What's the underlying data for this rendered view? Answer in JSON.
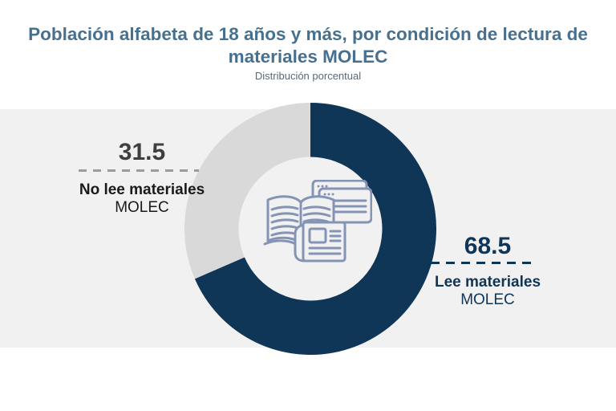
{
  "header": {
    "title_line1": "Población alfabeta de 18 años y más, por condición de lectura de",
    "title_line2": "materiales MOLEC",
    "subtitle": "Distribución porcentual"
  },
  "chart_data": {
    "type": "pie",
    "variant": "donut",
    "title": "Población alfabeta de 18 años y más, por condición de lectura de materiales MOLEC",
    "subtitle": "Distribución porcentual",
    "unit": "percent",
    "categories": [
      "Lee materiales MOLEC",
      "No lee materiales MOLEC"
    ],
    "values": [
      68.5,
      31.5
    ],
    "colors": [
      "#0F3557",
      "#D9D9D9"
    ],
    "start_angle_deg": 0,
    "direction": "clockwise",
    "inner_radius_ratio": 0.57,
    "center_icon": "reading-materials-icon",
    "legend_position": "callout-labels"
  },
  "callouts": {
    "left": {
      "value": "31.5",
      "label_line1": "No lee materiales",
      "label_line2": "MOLEC"
    },
    "right": {
      "value": "68.5",
      "label_line1": "Lee materiales",
      "label_line2": "MOLEC"
    }
  },
  "colors": {
    "navy": "#0F3557",
    "slice_gray": "#D9D9D9",
    "band_bg": "#F1F1F2",
    "title": "#47708F",
    "subtitle": "#5A6976",
    "left_value": "#3F3F3F",
    "left_text": "#1A1A1A",
    "left_dash": "#9B9B9B",
    "icon_stroke": "#8494B4",
    "page_bg": "#FFFFFF"
  }
}
